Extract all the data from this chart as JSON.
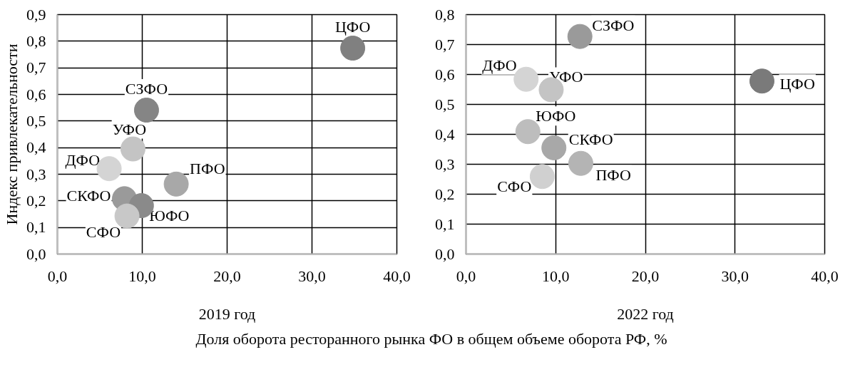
{
  "chart_data": [
    {
      "type": "scatter",
      "xlabel": "2019 год",
      "ylabel": "Индекс привлекательности",
      "marker": "circle",
      "grid": true,
      "x": [
        34.8,
        10.5,
        8.9,
        6.1,
        14.0,
        7.9,
        9.9,
        8.2
      ],
      "values": [
        0.774,
        0.541,
        0.395,
        0.321,
        0.263,
        0.208,
        0.182,
        0.143
      ],
      "colors": [
        "#808080",
        "#858585",
        "#c4c4c4",
        "#d4d4d4",
        "#a8a8a8",
        "#9a9a9a",
        "#8a8a8a",
        "#c8c8c8"
      ],
      "xlim": [
        0,
        40
      ],
      "xticks": [
        {
          "value": 0,
          "label": "0,0"
        },
        {
          "value": 10,
          "label": "10,0"
        },
        {
          "value": 20,
          "label": "20,0"
        },
        {
          "value": 30,
          "label": "30,0"
        },
        {
          "value": 40,
          "label": "40,0"
        }
      ],
      "ylim": [
        0,
        0.9
      ],
      "yticks": [
        {
          "value": 0,
          "label": "0,0"
        },
        {
          "value": 0.1,
          "label": "0,1"
        },
        {
          "value": 0.2,
          "label": "0,2"
        },
        {
          "value": 0.3,
          "label": "0,3"
        },
        {
          "value": 0.4,
          "label": "0,4"
        },
        {
          "value": 0.5,
          "label": "0,5"
        },
        {
          "value": 0.6,
          "label": "0,6"
        },
        {
          "value": 0.7,
          "label": "0,7"
        },
        {
          "value": 0.8,
          "label": "0,8"
        },
        {
          "value": 0.9,
          "label": "0,9"
        }
      ],
      "annotations": [
        {
          "text": "ЦФО",
          "x": 34.8,
          "y": 0.774
        },
        {
          "text": "СЗФО",
          "x": 10.5,
          "y": 0.541
        },
        {
          "text": "УФО",
          "x": 8.9,
          "y": 0.395
        },
        {
          "text": "ДФО",
          "x": 6.1,
          "y": 0.321
        },
        {
          "text": "ПФО",
          "x": 14.0,
          "y": 0.263
        },
        {
          "text": "СКФО",
          "x": 7.9,
          "y": 0.208
        },
        {
          "text": "ЮФО",
          "x": 9.9,
          "y": 0.182
        },
        {
          "text": "СФО",
          "x": 8.2,
          "y": 0.143
        },
        "Доля оборота ресторанного рынка ФО в общем объеме оборота РФ, %"
      ]
    },
    {
      "type": "scatter",
      "xlabel": "2022 год",
      "marker": "circle",
      "grid": true,
      "x": [
        12.7,
        6.7,
        9.5,
        33.0,
        6.9,
        9.8,
        12.8,
        8.5
      ],
      "values": [
        0.727,
        0.584,
        0.549,
        0.578,
        0.409,
        0.355,
        0.303,
        0.259
      ],
      "colors": [
        "#9a9a9a",
        "#d4d4d4",
        "#c4c4c4",
        "#7a7a7a",
        "#bdbdbd",
        "#a8a8a8",
        "#b4b4b4",
        "#d0d0d0"
      ],
      "xlim": [
        0,
        40
      ],
      "xticks": [
        {
          "value": 0,
          "label": "0,0"
        },
        {
          "value": 10,
          "label": "10,0"
        },
        {
          "value": 20,
          "label": "20,0"
        },
        {
          "value": 30,
          "label": "30,0"
        },
        {
          "value": 40,
          "label": "40,0"
        }
      ],
      "ylim": [
        0,
        0.8
      ],
      "yticks": [
        {
          "value": 0,
          "label": "0,0"
        },
        {
          "value": 0.1,
          "label": "0,1"
        },
        {
          "value": 0.2,
          "label": "0,2"
        },
        {
          "value": 0.3,
          "label": "0,3"
        },
        {
          "value": 0.4,
          "label": "0,4"
        },
        {
          "value": 0.5,
          "label": "0,5"
        },
        {
          "value": 0.6,
          "label": "0,6"
        },
        {
          "value": 0.7,
          "label": "0,7"
        },
        {
          "value": 0.8,
          "label": "0,8"
        }
      ],
      "annotations": [
        {
          "text": "СЗФО",
          "x": 12.7,
          "y": 0.727
        },
        {
          "text": "ДФО",
          "x": 6.7,
          "y": 0.584
        },
        {
          "text": "УФО",
          "x": 9.5,
          "y": 0.549
        },
        {
          "text": "ЦФО",
          "x": 33.0,
          "y": 0.578
        },
        {
          "text": "ЮФО",
          "x": 6.9,
          "y": 0.409
        },
        {
          "text": "СКФО",
          "x": 9.8,
          "y": 0.355
        },
        {
          "text": "ПФО",
          "x": 12.8,
          "y": 0.303
        },
        {
          "text": "СФО",
          "x": 8.5,
          "y": 0.259
        }
      ]
    }
  ]
}
